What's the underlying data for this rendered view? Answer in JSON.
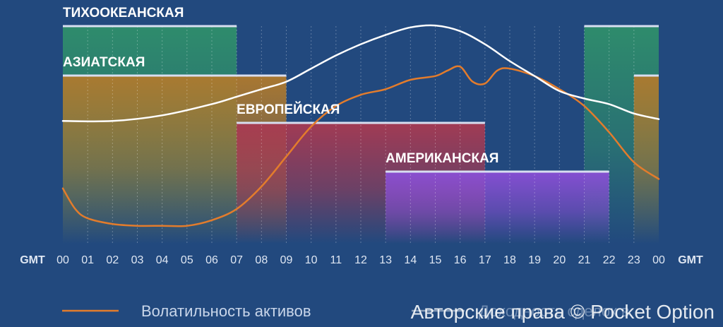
{
  "chart_data": {
    "type": "line",
    "x_axis": {
      "label_left": "GMT",
      "label_right": "GMT",
      "ticks": [
        "00",
        "01",
        "02",
        "03",
        "04",
        "05",
        "06",
        "07",
        "08",
        "09",
        "10",
        "11",
        "12",
        "13",
        "14",
        "15",
        "16",
        "17",
        "18",
        "19",
        "20",
        "21",
        "22",
        "23",
        "00"
      ]
    },
    "sessions": [
      {
        "id": "pacific",
        "name": "ТИХООКЕАНСКАЯ",
        "ranges": [
          [
            0,
            7
          ],
          [
            21,
            24
          ]
        ],
        "color": "#2f8f6b"
      },
      {
        "id": "asian",
        "name": "АЗИАТСКАЯ",
        "ranges": [
          [
            0,
            9
          ],
          [
            23,
            24
          ]
        ],
        "color": "#b07a2d"
      },
      {
        "id": "european",
        "name": "ЕВРОПЕЙСКАЯ",
        "ranges": [
          [
            7,
            17
          ]
        ],
        "color": "#a83a52"
      },
      {
        "id": "american",
        "name": "АМЕРИКАНСКАЯ",
        "ranges": [
          [
            13,
            22
          ]
        ],
        "color": "#8a4fd6"
      }
    ],
    "series": [
      {
        "id": "volatility",
        "name": "Волатильность активов",
        "color": "#e37c2c",
        "points": [
          [
            0,
            0.22
          ],
          [
            0.5,
            0.11
          ],
          [
            1,
            0.06
          ],
          [
            2,
            0.03
          ],
          [
            3,
            0.02
          ],
          [
            4,
            0.02
          ],
          [
            5,
            0.02
          ],
          [
            6,
            0.05
          ],
          [
            7,
            0.11
          ],
          [
            8,
            0.23
          ],
          [
            9,
            0.39
          ],
          [
            10,
            0.55
          ],
          [
            11,
            0.66
          ],
          [
            12,
            0.72
          ],
          [
            13,
            0.75
          ],
          [
            14,
            0.8
          ],
          [
            15,
            0.82
          ],
          [
            15.5,
            0.85
          ],
          [
            16,
            0.87
          ],
          [
            16.5,
            0.79
          ],
          [
            17,
            0.78
          ],
          [
            17.5,
            0.85
          ],
          [
            18,
            0.86
          ],
          [
            19,
            0.82
          ],
          [
            20,
            0.75
          ],
          [
            21,
            0.66
          ],
          [
            22,
            0.52
          ],
          [
            23,
            0.36
          ],
          [
            24,
            0.27
          ]
        ]
      },
      {
        "id": "activity",
        "name": "",
        "color": "#ffffff",
        "points": [
          [
            0,
            0.58
          ],
          [
            2,
            0.58
          ],
          [
            4,
            0.61
          ],
          [
            6,
            0.67
          ],
          [
            7,
            0.71
          ],
          [
            8,
            0.75
          ],
          [
            9,
            0.79
          ],
          [
            10,
            0.86
          ],
          [
            11,
            0.93
          ],
          [
            12,
            0.99
          ],
          [
            13,
            1.04
          ],
          [
            14,
            1.08
          ],
          [
            15,
            1.09
          ],
          [
            16,
            1.06
          ],
          [
            17,
            0.99
          ],
          [
            18,
            0.9
          ],
          [
            19,
            0.82
          ],
          [
            20,
            0.74
          ],
          [
            21,
            0.7
          ],
          [
            22,
            0.67
          ],
          [
            23,
            0.62
          ],
          [
            24,
            0.59
          ]
        ]
      }
    ],
    "legend": {
      "position": "bottom-left",
      "items": [
        "Волатильность активов"
      ]
    },
    "watermark": "Авторские права © Pocket Option",
    "overlapping_text": "Доходность сделок в"
  }
}
